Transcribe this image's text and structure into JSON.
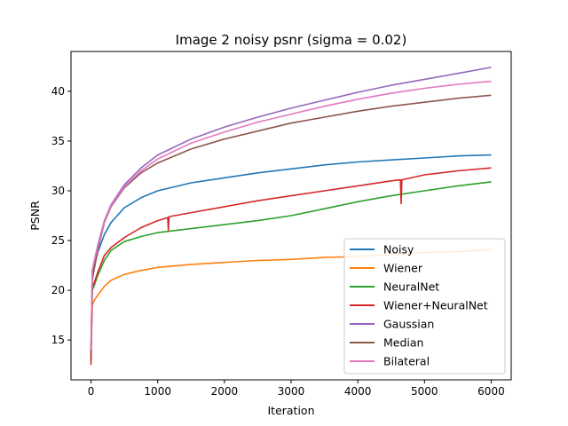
{
  "chart_data": {
    "type": "line",
    "title": "Image 2 noisy psnr (sigma = 0.02)",
    "xlabel": "Iteration",
    "ylabel": "PSNR",
    "xlim": [
      -300,
      6300
    ],
    "ylim": [
      11,
      44
    ],
    "xticks": [
      0,
      1000,
      2000,
      3000,
      4000,
      5000,
      6000
    ],
    "yticks": [
      15,
      20,
      25,
      30,
      35,
      40
    ],
    "grid": false,
    "legend_position": "lower right",
    "series": [
      {
        "name": "Noisy",
        "color": "#1f77b4",
        "x": [
          0,
          20,
          50,
          100,
          200,
          300,
          500,
          750,
          1000,
          1500,
          2000,
          2500,
          3000,
          3500,
          4000,
          4500,
          5000,
          5500,
          6000
        ],
        "y": [
          13.5,
          21.5,
          22.5,
          23.8,
          25.6,
          26.8,
          28.3,
          29.3,
          30.0,
          30.8,
          31.3,
          31.8,
          32.2,
          32.6,
          32.9,
          33.1,
          33.3,
          33.5,
          33.6
        ]
      },
      {
        "name": "Wiener",
        "color": "#ff7f0e",
        "x": [
          0,
          20,
          50,
          100,
          200,
          300,
          500,
          750,
          1000,
          1500,
          2000,
          2500,
          3000,
          3500,
          4000,
          4500,
          5000,
          5500,
          6000
        ],
        "y": [
          13.0,
          18.5,
          19.0,
          19.5,
          20.4,
          21.0,
          21.6,
          22.0,
          22.3,
          22.6,
          22.8,
          23.0,
          23.1,
          23.3,
          23.4,
          23.6,
          23.8,
          23.9,
          24.1
        ]
      },
      {
        "name": "NeuralNet",
        "color": "#2ca02c",
        "x": [
          0,
          20,
          50,
          100,
          200,
          300,
          500,
          750,
          1000,
          1500,
          2000,
          2500,
          3000,
          3500,
          4000,
          4500,
          5000,
          5500,
          6000
        ],
        "y": [
          13.0,
          20.0,
          20.5,
          21.5,
          23.0,
          24.0,
          24.9,
          25.4,
          25.8,
          26.2,
          26.6,
          27.0,
          27.5,
          28.2,
          28.9,
          29.5,
          30.0,
          30.5,
          30.9
        ]
      },
      {
        "name": "Wiener+NeuralNet",
        "color": "#d62728",
        "x": [
          0,
          20,
          50,
          100,
          200,
          300,
          500,
          750,
          1000,
          1150,
          1160,
          1170,
          1500,
          2000,
          2500,
          3000,
          3500,
          4000,
          4500,
          4640,
          4650,
          4660,
          5000,
          5500,
          6000
        ],
        "y": [
          12.5,
          20.3,
          20.8,
          21.8,
          23.5,
          24.3,
          25.3,
          26.3,
          27.0,
          27.3,
          26.0,
          27.4,
          27.8,
          28.4,
          29.0,
          29.5,
          30.0,
          30.5,
          31.0,
          31.1,
          28.7,
          31.1,
          31.6,
          32.0,
          32.3
        ]
      },
      {
        "name": "Gaussian",
        "color": "#9467bd",
        "x": [
          0,
          20,
          50,
          100,
          200,
          300,
          500,
          750,
          1000,
          1500,
          2000,
          2500,
          3000,
          3500,
          4000,
          4500,
          5000,
          5500,
          6000
        ],
        "y": [
          14.0,
          22.0,
          23.0,
          24.5,
          27.0,
          28.6,
          30.6,
          32.3,
          33.6,
          35.2,
          36.4,
          37.4,
          38.3,
          39.1,
          39.9,
          40.6,
          41.2,
          41.8,
          42.4
        ]
      },
      {
        "name": "Median",
        "color": "#8c564b",
        "x": [
          0,
          20,
          50,
          100,
          200,
          300,
          500,
          750,
          1000,
          1500,
          2000,
          2500,
          3000,
          3500,
          4000,
          4500,
          5000,
          5500,
          6000
        ],
        "y": [
          14.0,
          21.0,
          22.2,
          24.0,
          26.8,
          28.4,
          30.3,
          31.8,
          32.8,
          34.2,
          35.2,
          36.0,
          36.8,
          37.4,
          38.0,
          38.5,
          38.9,
          39.3,
          39.6
        ]
      },
      {
        "name": "Bilateral",
        "color": "#e377c2",
        "x": [
          0,
          20,
          50,
          100,
          200,
          300,
          500,
          750,
          1000,
          1500,
          2000,
          2500,
          3000,
          3500,
          4000,
          4500,
          5000,
          5500,
          6000
        ],
        "y": [
          14.0,
          22.0,
          23.0,
          24.3,
          26.9,
          28.5,
          30.4,
          32.0,
          33.2,
          34.8,
          35.9,
          36.9,
          37.7,
          38.5,
          39.2,
          39.8,
          40.3,
          40.7,
          41.0
        ]
      }
    ]
  }
}
